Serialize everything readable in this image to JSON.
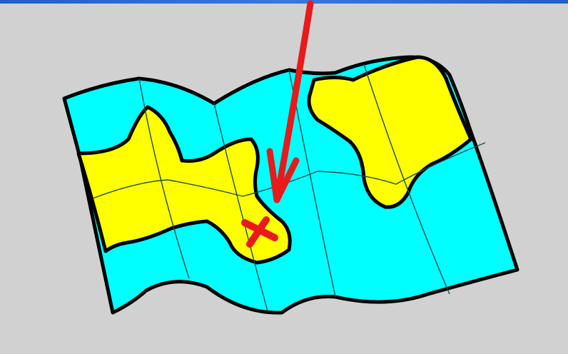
{
  "scene": {
    "subject": "treasure-map",
    "colors": {
      "background": "#d1d1d1",
      "window_bar": "#1f5fc9",
      "water": "#00ffff",
      "land": "#ffff00",
      "outline": "#000000",
      "fold_lines": "#1a4d4d",
      "pointer_arrow": "#e81a1a",
      "treasure_mark": "#e81a1a"
    },
    "marks": [
      {
        "name": "treasure-x-mark",
        "symbol": "X"
      },
      {
        "name": "pointer-arrow",
        "direction": "down"
      }
    ]
  }
}
